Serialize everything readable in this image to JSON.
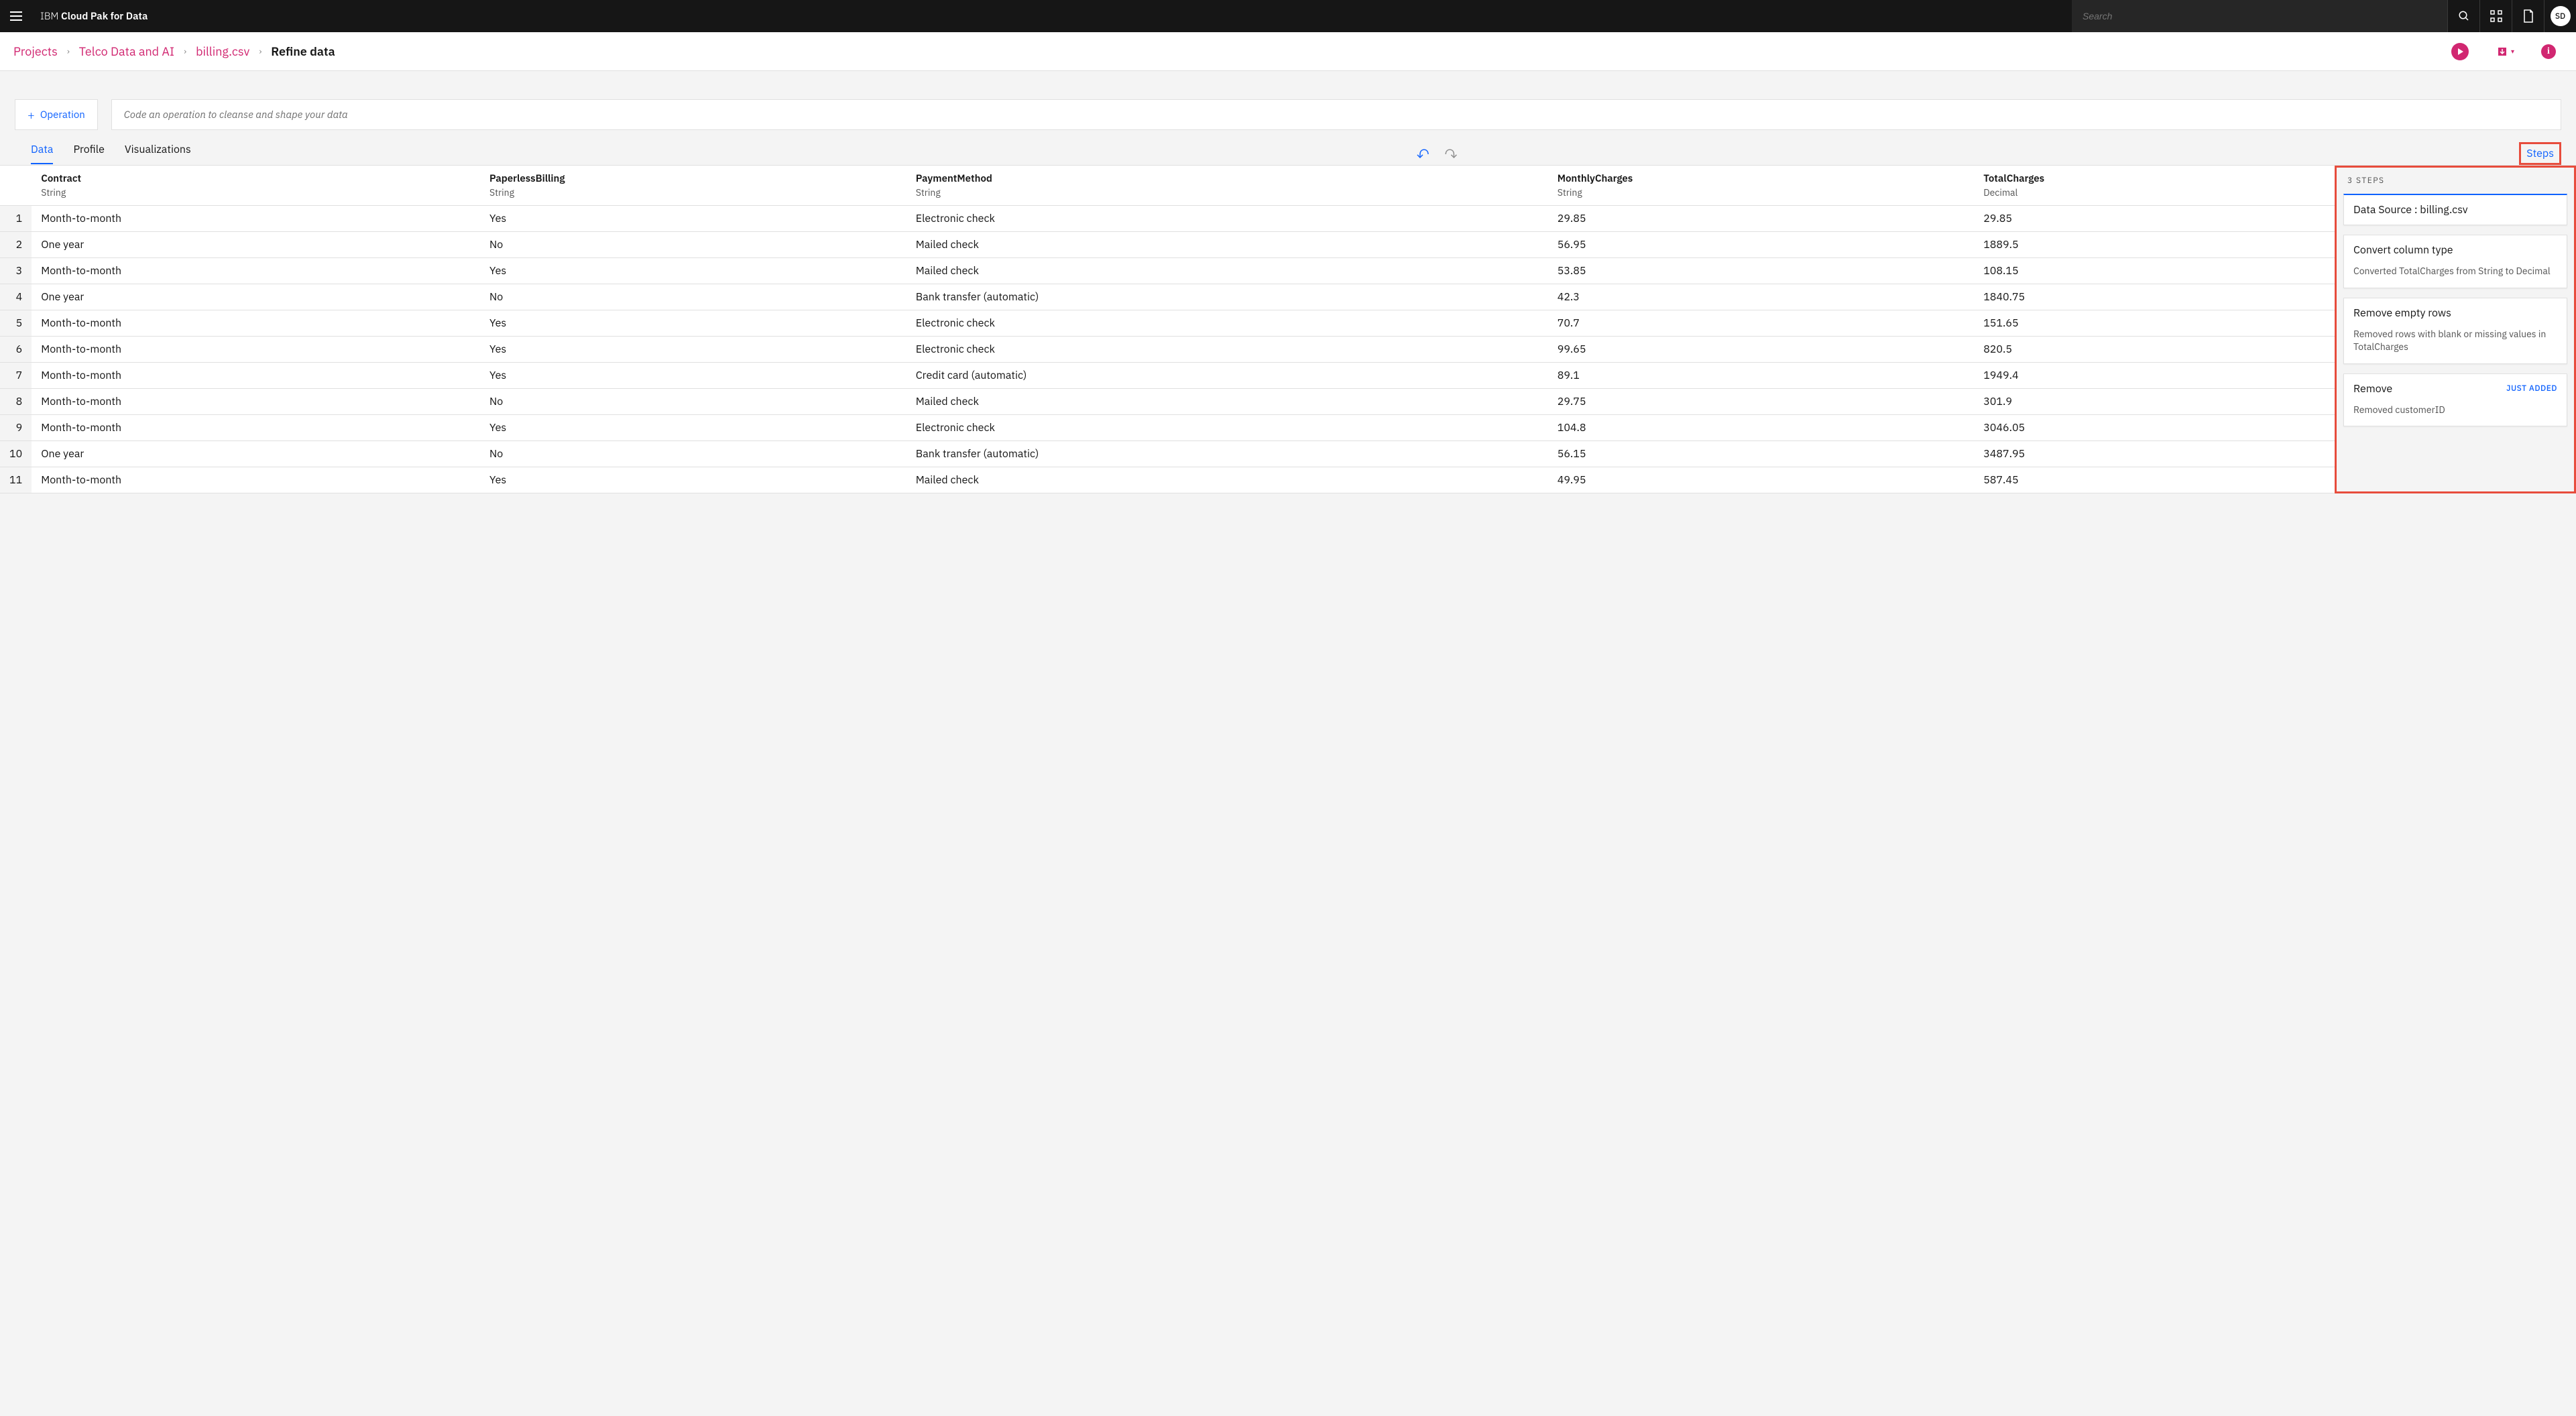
{
  "header": {
    "brand_prefix": "IBM ",
    "brand_bold": "Cloud Pak for Data",
    "search_placeholder": "Search",
    "avatar_initials": "SD"
  },
  "breadcrumbs": {
    "items": [
      "Projects",
      "Telco Data and AI",
      "billing.csv"
    ],
    "current": "Refine data"
  },
  "operation": {
    "button_label": "Operation",
    "code_placeholder": "Code an operation to cleanse and shape your data"
  },
  "tabs": {
    "items": [
      "Data",
      "Profile",
      "Visualizations"
    ],
    "active_index": 0,
    "steps_label": "Steps"
  },
  "table": {
    "columns": [
      {
        "name": "Contract",
        "type": "String"
      },
      {
        "name": "PaperlessBilling",
        "type": "String"
      },
      {
        "name": "PaymentMethod",
        "type": "String"
      },
      {
        "name": "MonthlyCharges",
        "type": "String"
      },
      {
        "name": "TotalCharges",
        "type": "Decimal"
      }
    ],
    "rows": [
      [
        "Month-to-month",
        "Yes",
        "Electronic check",
        "29.85",
        "29.85"
      ],
      [
        "One year",
        "No",
        "Mailed check",
        "56.95",
        "1889.5"
      ],
      [
        "Month-to-month",
        "Yes",
        "Mailed check",
        "53.85",
        "108.15"
      ],
      [
        "One year",
        "No",
        "Bank transfer (automatic)",
        "42.3",
        "1840.75"
      ],
      [
        "Month-to-month",
        "Yes",
        "Electronic check",
        "70.7",
        "151.65"
      ],
      [
        "Month-to-month",
        "Yes",
        "Electronic check",
        "99.65",
        "820.5"
      ],
      [
        "Month-to-month",
        "Yes",
        "Credit card (automatic)",
        "89.1",
        "1949.4"
      ],
      [
        "Month-to-month",
        "No",
        "Mailed check",
        "29.75",
        "301.9"
      ],
      [
        "Month-to-month",
        "Yes",
        "Electronic check",
        "104.8",
        "3046.05"
      ],
      [
        "One year",
        "No",
        "Bank transfer (automatic)",
        "56.15",
        "3487.95"
      ],
      [
        "Month-to-month",
        "Yes",
        "Mailed check",
        "49.95",
        "587.45"
      ]
    ]
  },
  "steps_panel": {
    "count_label": "3 STEPS",
    "data_source_label": "Data Source : billing.csv",
    "just_added_label": "JUST ADDED",
    "steps": [
      {
        "title": "Convert column type",
        "desc": "Converted TotalCharges from String to Decimal",
        "just_added": false
      },
      {
        "title": "Remove empty rows",
        "desc": "Removed rows with blank or missing values in TotalCharges",
        "just_added": false
      },
      {
        "title": "Remove",
        "desc": "Removed customerID",
        "just_added": true
      }
    ]
  },
  "colors": {
    "accent_pink": "#d12771",
    "accent_blue": "#0f62fe",
    "highlight_red": "#e74c3c",
    "header_bg": "#161616",
    "body_bg": "#f4f4f4"
  }
}
